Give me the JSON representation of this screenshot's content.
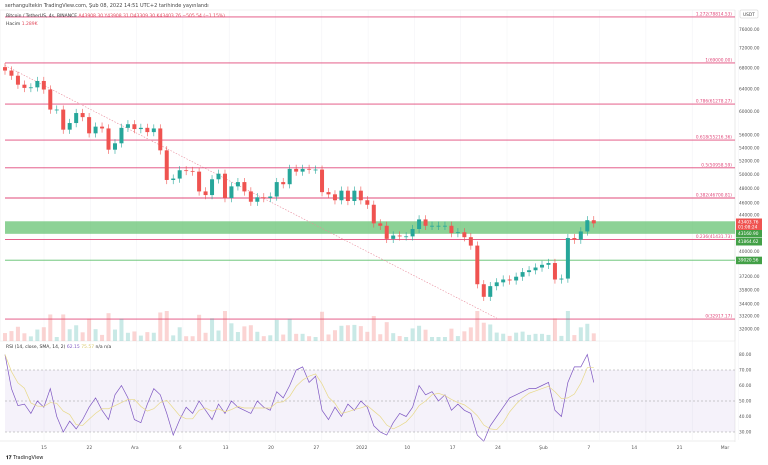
{
  "header": {
    "published": "serhangultekin TradingView.com, Şub 08, 2022 14:51 UTC+2 tarihinde yayınlandı"
  },
  "legend": {
    "symbol": "Bitcoin / TetherUS, 4s, BINANCE",
    "ohlc": "A43908.30 Y43908.31 D43309.30 K43403.76 −505.54 (−1.15%)",
    "volume_label": "Hacim",
    "volume_value": "1.289K"
  },
  "rsi_legend": {
    "label": "RSI (14, close, SMA, 14, 2)",
    "value": "62.15",
    "sma": "75.57",
    "extra": "n/a n/a"
  },
  "brand": "TradingView",
  "currency": "USDT",
  "colors": {
    "up": "#26a69a",
    "down": "#ef5350",
    "fib": "#e0487a",
    "zone": "#5cbf6a",
    "rsi": "#7e57c2",
    "rsi_sma": "#e8d98a"
  },
  "price_axis": [
    "76000.00",
    "72000.00",
    "68000.00",
    "64000.00",
    "60000.00",
    "56000.00",
    "54000.00",
    "52000.00",
    "50000.00",
    "48000.00",
    "46000.00",
    "44000.00",
    "40000.00",
    "37200.00",
    "35800.00",
    "34400.00",
    "33200.00",
    "32000.00"
  ],
  "price_tags": [
    {
      "text": "43403.76",
      "sub": "01:08:24",
      "color": "#ef5350",
      "price": 43403.76
    },
    {
      "text": "43160.90",
      "color": "#43a047",
      "price": 43160.9
    },
    {
      "text": "41864.62",
      "color": "#43a047",
      "price": 41864.62
    },
    {
      "text": "39020.56",
      "color": "#43a047",
      "price": 39020.56
    }
  ],
  "fib_levels": [
    {
      "label": "1.272(78814.53)",
      "price": 78814.53
    },
    {
      "label": "1(69000.00)",
      "price": 69000
    },
    {
      "label": "0.786(61278.27)",
      "price": 61278.27
    },
    {
      "label": "0.618(55216.36)",
      "price": 55216.36
    },
    {
      "label": "0.5(50958.59)",
      "price": 50958.59
    },
    {
      "label": "0.382(46700.81)",
      "price": 46700.81
    },
    {
      "label": "0.236(41431.73)",
      "price": 41431.73
    },
    {
      "label": "0(32917.17)",
      "price": 32917.17
    }
  ],
  "zone": {
    "from": 41864.62,
    "to": 43160.9
  },
  "support_line": 39020.56,
  "time_axis": [
    "15",
    "22",
    "Ara",
    "6",
    "13",
    "20",
    "27",
    "2022",
    "10",
    "17",
    "24",
    "Şub",
    "7",
    "14",
    "21",
    "Mar"
  ],
  "rsi_axis": [
    "80.00",
    "70.00",
    "60.00",
    "50.00",
    "40.00",
    "30.00"
  ],
  "chart_data": {
    "type": "candlestick",
    "scale": "log",
    "x_start": "2021-11-09",
    "x_end": "2022-02-08",
    "ylim": [
      31000,
      80000
    ],
    "closes": [
      67500,
      66500,
      64800,
      64200,
      64300,
      65500,
      63900,
      60300,
      60300,
      56900,
      58000,
      59700,
      59000,
      56300,
      57400,
      57100,
      53700,
      54700,
      57200,
      57800,
      57000,
      57200,
      56500,
      57100,
      53600,
      49200,
      49400,
      50600,
      50500,
      50400,
      47600,
      47100,
      49300,
      50100,
      46700,
      48300,
      48900,
      47600,
      46200,
      46800,
      46700,
      46900,
      48900,
      48600,
      50800,
      50400,
      50800,
      50700,
      50700,
      47500,
      47200,
      46400,
      47700,
      46300,
      47700,
      46400,
      45800,
      43400,
      43100,
      41500,
      41900,
      41800,
      41800,
      42700,
      43900,
      43100,
      43100,
      43100,
      43100,
      42200,
      42300,
      41700,
      40700,
      36400,
      35100,
      36200,
      36600,
      36900,
      36800,
      37200,
      37700,
      37900,
      38200,
      38500,
      38700,
      36900,
      37000,
      41600,
      41400,
      42400,
      43800,
      43400
    ],
    "rsi": [
      80,
      58,
      47,
      48,
      42,
      50,
      46,
      58,
      40,
      30,
      37,
      32,
      38,
      46,
      52,
      44,
      38,
      54,
      60,
      52,
      38,
      36,
      48,
      58,
      54,
      42,
      28,
      38,
      46,
      42,
      50,
      44,
      38,
      48,
      42,
      50,
      46,
      44,
      42,
      50,
      46,
      44,
      56,
      52,
      60,
      70,
      72,
      62,
      66,
      44,
      38,
      46,
      40,
      48,
      44,
      50,
      46,
      34,
      30,
      28,
      36,
      42,
      40,
      46,
      60,
      54,
      56,
      50,
      54,
      44,
      48,
      44,
      42,
      28,
      24,
      34,
      40,
      46,
      52,
      54,
      56,
      58,
      58,
      60,
      62,
      44,
      40,
      62,
      72,
      72,
      80,
      62
    ],
    "rsi_bands": [
      30,
      50,
      70
    ]
  }
}
